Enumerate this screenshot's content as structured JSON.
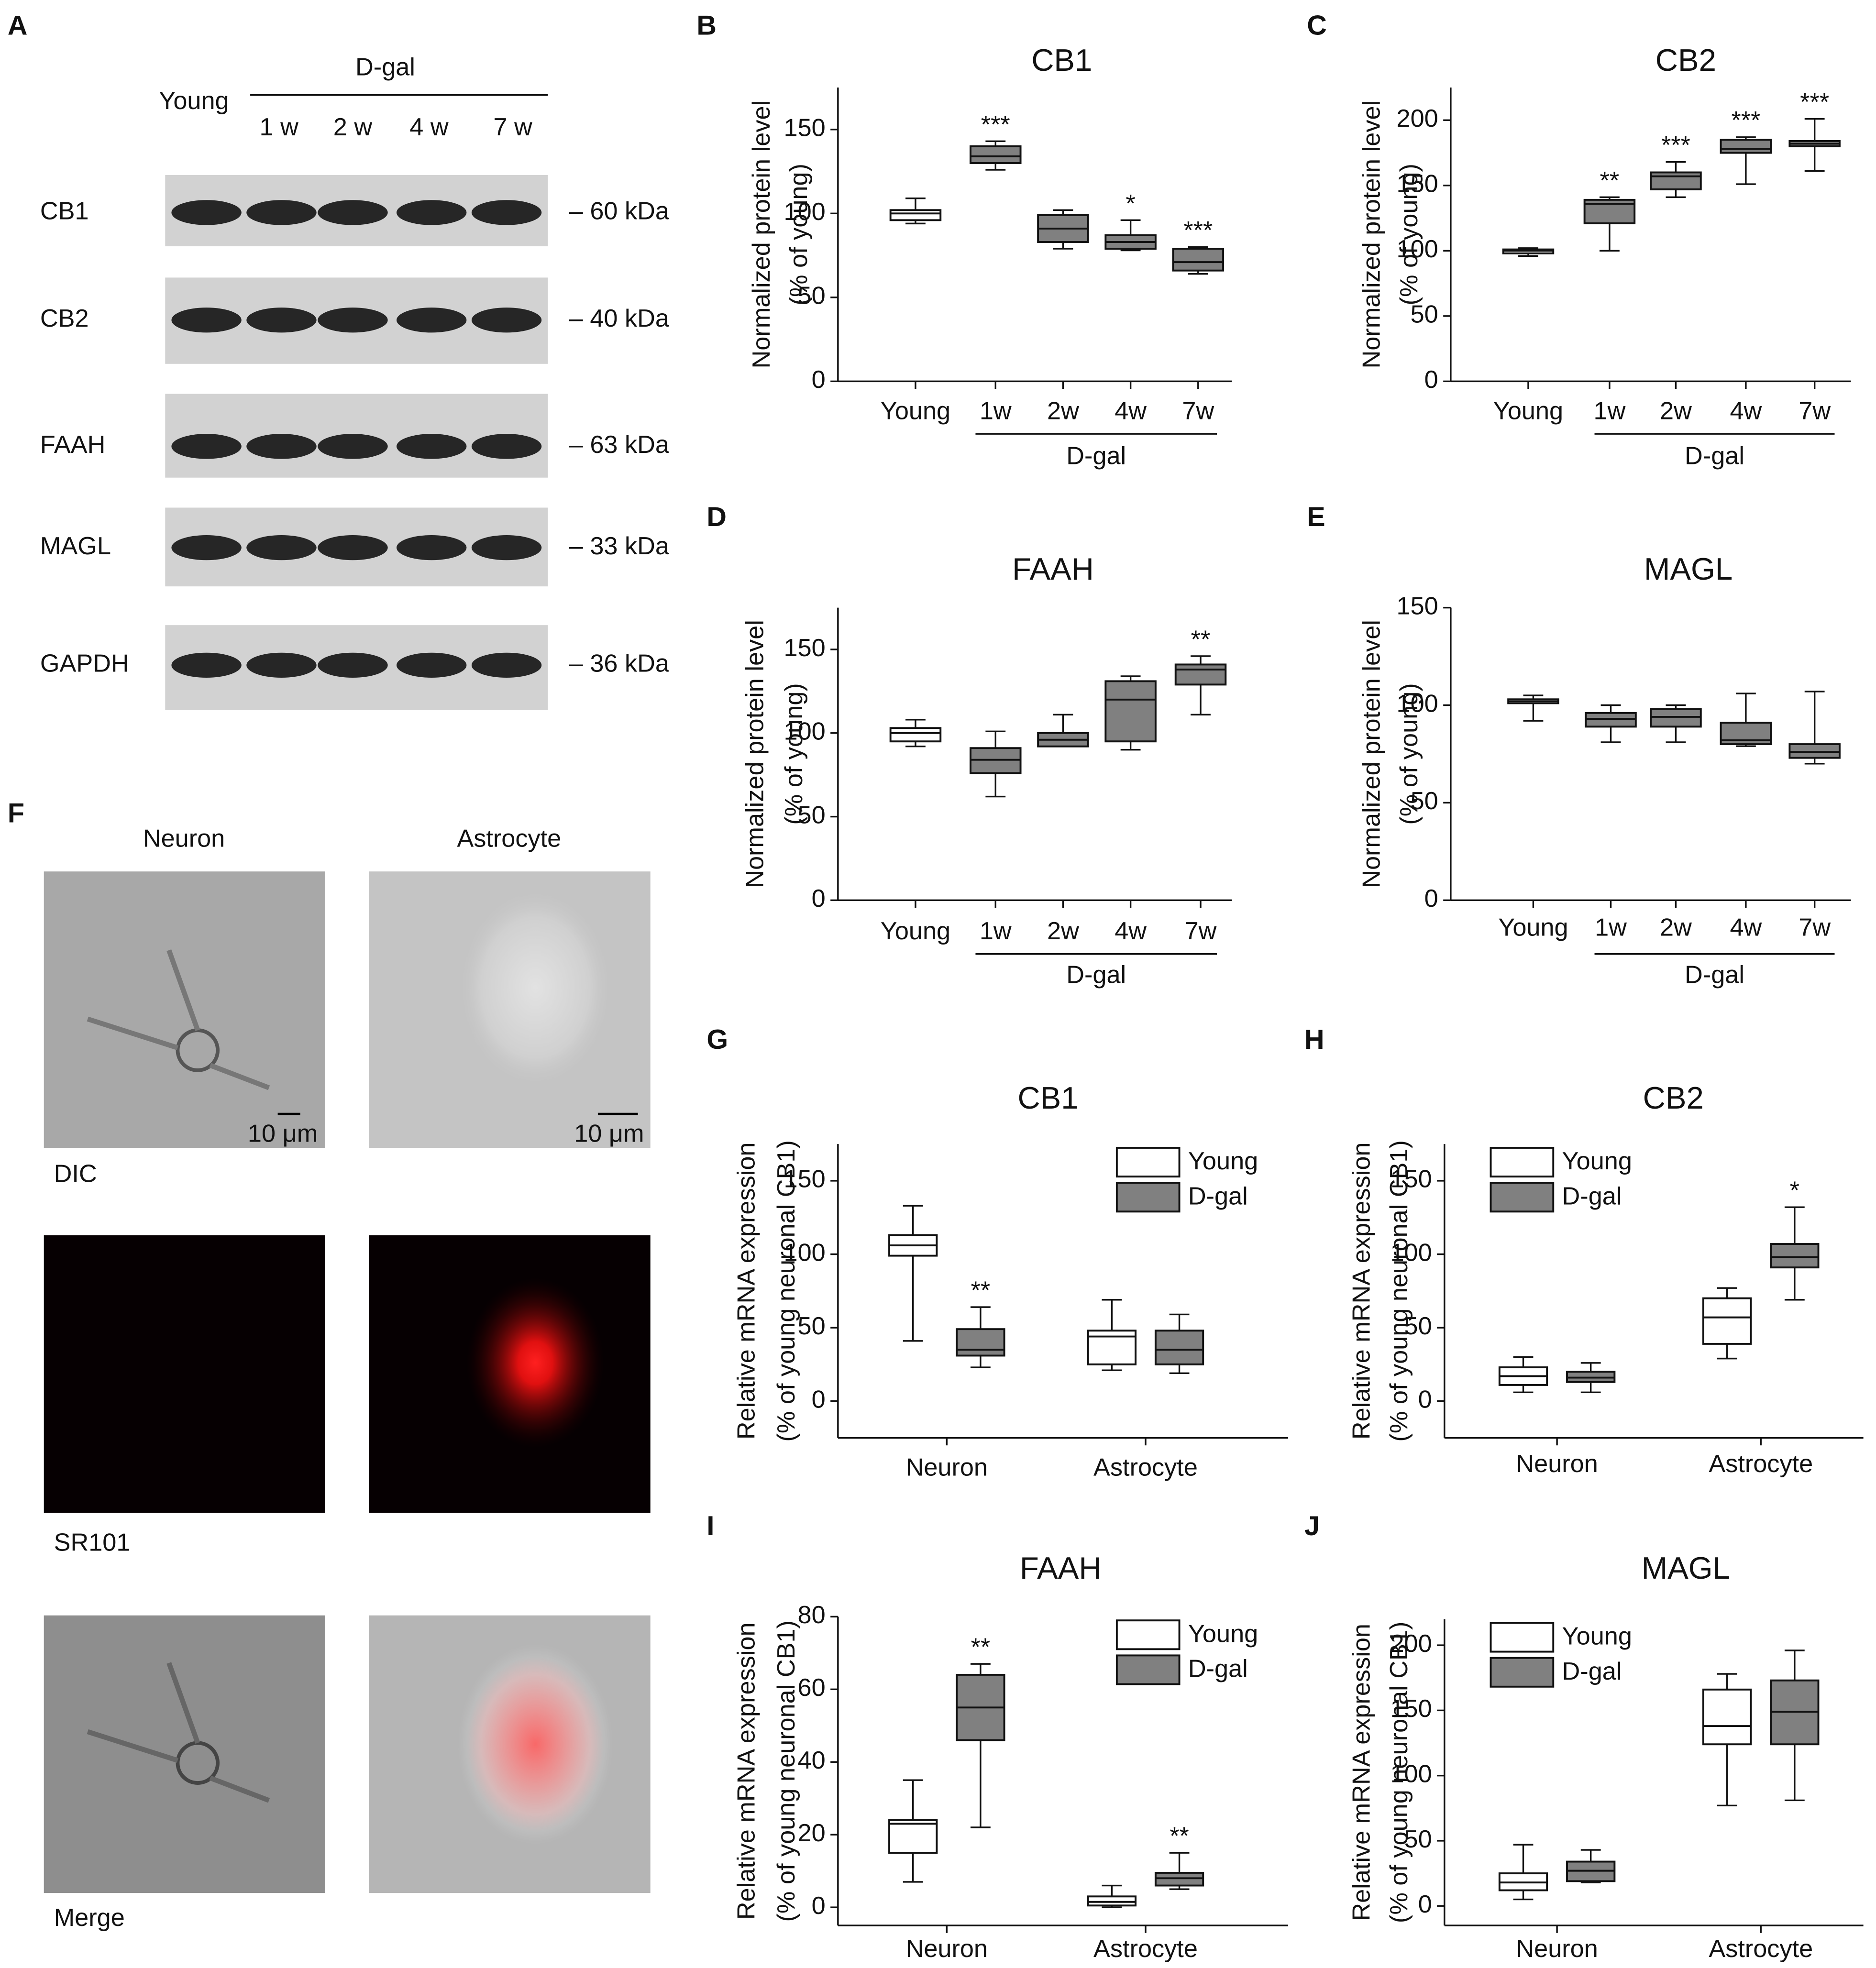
{
  "blot": {
    "panel": "A",
    "young": "Young",
    "group": "D-gal",
    "lanes": [
      "1 w",
      "2 w",
      "4 w",
      "7 w"
    ],
    "rows": [
      {
        "name": "CB1",
        "size": "– 60 kDa"
      },
      {
        "name": "CB2",
        "size": "– 40 kDa"
      },
      {
        "name": "FAAH",
        "size": "– 63 kDa"
      },
      {
        "name": "MAGL",
        "size": "– 33 kDa"
      },
      {
        "name": "GAPDH",
        "size": "– 36 kDa"
      }
    ]
  },
  "imaging": {
    "panel": "F",
    "columns": [
      "Neuron",
      "Astrocyte"
    ],
    "rows": [
      "DIC",
      "SR101",
      "Merge"
    ],
    "scale_bar": [
      "10 μm",
      "10 μm"
    ]
  },
  "chart_data": [
    {
      "type": "box",
      "panel": "B",
      "title": "CB1",
      "ylabel": [
        "Normalized protein level",
        "(% of young)"
      ],
      "categories": [
        "Young",
        "1w",
        "2w",
        "4w",
        "7w"
      ],
      "group_label": "D-gal",
      "ylim": [
        0,
        175
      ],
      "yticks": [
        0,
        50,
        100,
        150
      ],
      "colors": [
        "#ffffff",
        "#808080",
        "#808080",
        "#808080",
        "#808080"
      ],
      "boxes": [
        [
          94,
          96,
          100,
          102,
          109
        ],
        [
          126,
          130,
          134,
          140,
          143
        ],
        [
          79,
          83,
          91,
          99,
          102
        ],
        [
          78,
          79,
          83,
          87,
          96
        ],
        [
          64,
          66,
          71,
          79,
          80
        ]
      ],
      "annotations": [
        null,
        "***",
        null,
        "*",
        "***"
      ]
    },
    {
      "type": "box",
      "panel": "C",
      "title": "CB2",
      "ylabel": [
        "Normalized protein level",
        "(% of young)"
      ],
      "categories": [
        "Young",
        "1w",
        "2w",
        "4w",
        "7w"
      ],
      "group_label": "D-gal",
      "ylim": [
        0,
        225
      ],
      "yticks": [
        0,
        50,
        100,
        150,
        200
      ],
      "colors": [
        "#ffffff",
        "#808080",
        "#808080",
        "#808080",
        "#808080"
      ],
      "boxes": [
        [
          96,
          98,
          100,
          101,
          102
        ],
        [
          100,
          121,
          136,
          139,
          141
        ],
        [
          141,
          147,
          157,
          160,
          168
        ],
        [
          151,
          175,
          178,
          185,
          187
        ],
        [
          161,
          180,
          182,
          184,
          201
        ]
      ],
      "annotations": [
        null,
        "**",
        "***",
        "***",
        "***"
      ]
    },
    {
      "type": "box",
      "panel": "D",
      "title": "FAAH",
      "ylabel": [
        "Normalized protein level",
        "(% of young)"
      ],
      "categories": [
        "Young",
        "1w",
        "2w",
        "4w",
        "7w"
      ],
      "group_label": "D-gal",
      "ylim": [
        0,
        175
      ],
      "yticks": [
        0,
        50,
        100,
        150
      ],
      "colors": [
        "#ffffff",
        "#808080",
        "#808080",
        "#808080",
        "#808080"
      ],
      "boxes": [
        [
          92,
          95,
          100,
          103,
          108
        ],
        [
          62,
          76,
          84,
          91,
          101
        ],
        [
          92,
          92,
          96,
          100,
          111
        ],
        [
          90,
          95,
          120,
          131,
          134
        ],
        [
          111,
          129,
          138,
          141,
          146
        ]
      ],
      "annotations": [
        null,
        null,
        null,
        null,
        "**"
      ]
    },
    {
      "type": "box",
      "panel": "E",
      "title": "MAGL",
      "ylabel": [
        "Normalized protein level",
        "(% of young)"
      ],
      "categories": [
        "Young",
        "1w",
        "2w",
        "4w",
        "7w"
      ],
      "group_label": "D-gal",
      "ylim": [
        0,
        150
      ],
      "yticks": [
        0,
        50,
        100,
        150
      ],
      "colors": [
        "#ffffff",
        "#808080",
        "#808080",
        "#808080",
        "#808080"
      ],
      "boxes": [
        [
          92,
          101,
          102,
          103,
          105
        ],
        [
          81,
          89,
          93,
          96,
          100
        ],
        [
          81,
          89,
          94,
          98,
          100
        ],
        [
          79,
          80,
          82,
          91,
          106
        ],
        [
          70,
          73,
          76,
          80,
          107
        ]
      ],
      "annotations": [
        null,
        null,
        null,
        null,
        null
      ]
    },
    {
      "type": "grouped_box",
      "panel": "G",
      "title": "CB1",
      "ylabel": [
        "Relative mRNA expression",
        "(% of young neuronal CB1)"
      ],
      "categories": [
        "Neuron",
        "Astrocyte"
      ],
      "legend": "upper right",
      "ylim": [
        -25,
        175
      ],
      "yticks": [
        0,
        50,
        100,
        150
      ],
      "series": [
        {
          "name": "Young",
          "color": "#ffffff",
          "boxes": [
            [
              41,
              99,
              106,
              113,
              133
            ],
            [
              21,
              25,
              44,
              48,
              69
            ]
          ],
          "annotations": [
            null,
            null
          ]
        },
        {
          "name": "D-gal",
          "color": "#808080",
          "boxes": [
            [
              23,
              31,
              35,
              49,
              64
            ],
            [
              19,
              25,
              35,
              48,
              59
            ]
          ],
          "annotations": [
            "**",
            null
          ]
        }
      ]
    },
    {
      "type": "grouped_box",
      "panel": "H",
      "title": "CB2",
      "ylabel": [
        "Relative mRNA expression",
        "(% of young neuronal CB1)"
      ],
      "categories": [
        "Neuron",
        "Astrocyte"
      ],
      "legend": "upper left",
      "ylim": [
        -25,
        175
      ],
      "yticks": [
        0,
        50,
        100,
        150
      ],
      "series": [
        {
          "name": "Young",
          "color": "#ffffff",
          "boxes": [
            [
              6,
              11,
              17,
              23,
              30
            ],
            [
              29,
              39,
              57,
              70,
              77
            ]
          ],
          "annotations": [
            null,
            null
          ]
        },
        {
          "name": "D-gal",
          "color": "#808080",
          "boxes": [
            [
              6,
              13,
              16,
              20,
              26
            ],
            [
              69,
              91,
              98,
              107,
              132
            ]
          ],
          "annotations": [
            null,
            "*"
          ]
        }
      ]
    },
    {
      "type": "grouped_box",
      "panel": "I",
      "title": "FAAH",
      "ylabel": [
        "Relative mRNA expression",
        "(% of young neuronal CB1)"
      ],
      "categories": [
        "Neuron",
        "Astrocyte"
      ],
      "legend": "upper right",
      "ylim": [
        -5,
        80
      ],
      "yticks": [
        0,
        20,
        40,
        60,
        80
      ],
      "series": [
        {
          "name": "Young",
          "color": "#ffffff",
          "boxes": [
            [
              7,
              15,
              23,
              24,
              35
            ],
            [
              0,
              0.5,
              1.5,
              3,
              6
            ]
          ],
          "annotations": [
            null,
            null
          ]
        },
        {
          "name": "D-gal",
          "color": "#808080",
          "boxes": [
            [
              22,
              46,
              55,
              64,
              67
            ],
            [
              5,
              6,
              8,
              9.5,
              15
            ]
          ],
          "annotations": [
            "**",
            "**"
          ]
        }
      ]
    },
    {
      "type": "grouped_box",
      "panel": "J",
      "title": "MAGL",
      "ylabel": [
        "Relative mRNA expression",
        "(% of young neuronal CB1)"
      ],
      "categories": [
        "Neuron",
        "Astrocyte"
      ],
      "legend": "upper left",
      "ylim": [
        -15,
        220
      ],
      "yticks": [
        0,
        50,
        100,
        150,
        200
      ],
      "series": [
        {
          "name": "Young",
          "color": "#ffffff",
          "boxes": [
            [
              5,
              12,
              18,
              25,
              47
            ],
            [
              77,
              124,
              138,
              166,
              178
            ]
          ],
          "annotations": [
            null,
            null
          ]
        },
        {
          "name": "D-gal",
          "color": "#808080",
          "boxes": [
            [
              18,
              19,
              27,
              34,
              43
            ],
            [
              81,
              124,
              149,
              173,
              196
            ]
          ],
          "annotations": [
            null,
            null
          ]
        }
      ]
    }
  ]
}
